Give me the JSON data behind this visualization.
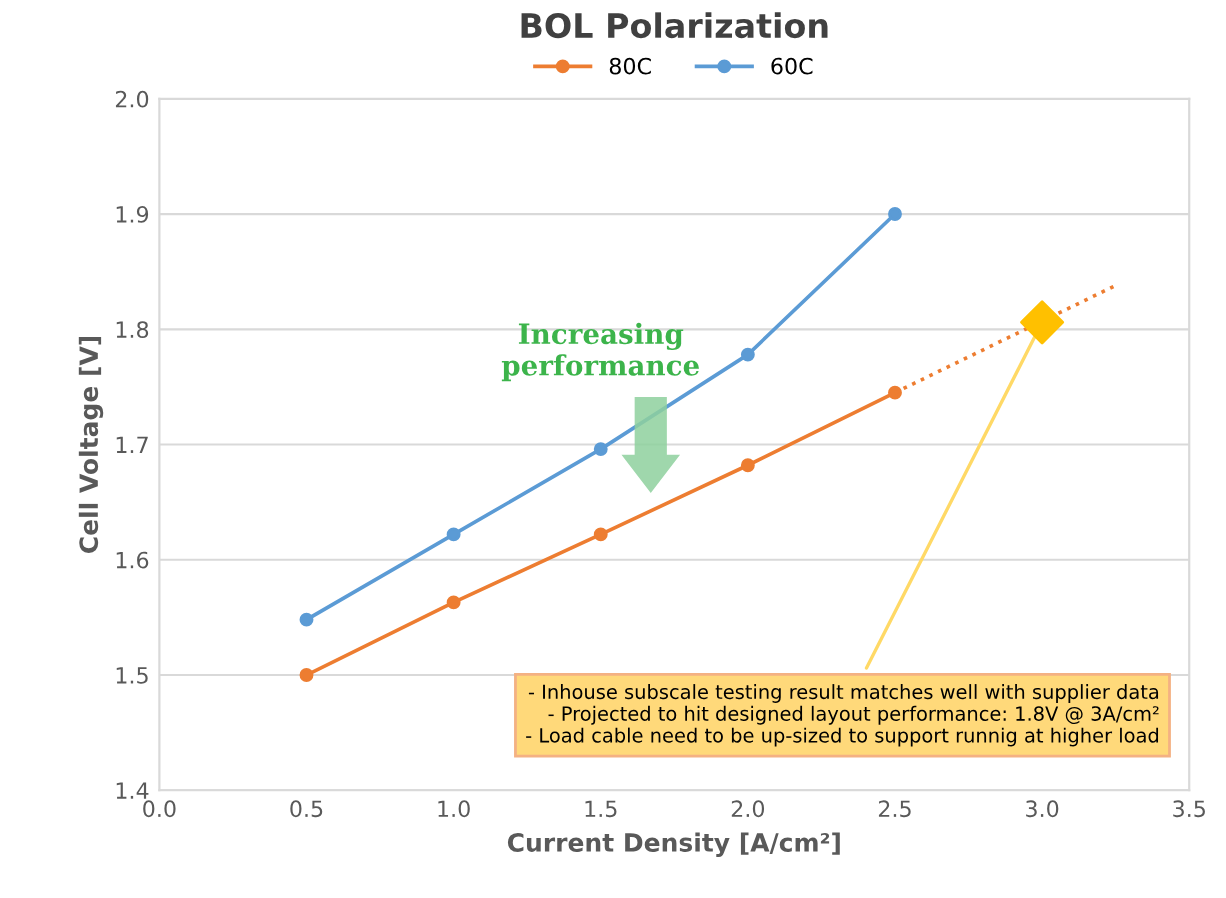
{
  "chart_data": {
    "type": "line",
    "title": "BOL Polarization",
    "xlabel": "Current Density [A/cm²]",
    "ylabel": "Cell Voltage [V]",
    "xlim": [
      0,
      3.5
    ],
    "ylim": [
      1.4,
      2.0
    ],
    "xticks": [
      {
        "value": 0,
        "label": "0.0"
      },
      0.5,
      {
        "value": 1,
        "label": "1.0"
      },
      1.5,
      {
        "value": 2,
        "label": "2.0"
      },
      2.5,
      {
        "value": 3,
        "label": "3.0"
      },
      3.5
    ],
    "yticks": [
      1.4,
      1.5,
      1.6,
      1.7,
      1.8,
      1.9,
      {
        "value": 2.0,
        "label": "2.0"
      }
    ],
    "grid": "y",
    "legend": "top",
    "marker": "circle",
    "line_style": "solid",
    "series": [
      {
        "name": "80C",
        "color": "#ed7d31",
        "x": [
          0.5,
          1.0,
          1.5,
          2.0,
          2.5
        ],
        "values": [
          1.5,
          1.563,
          1.622,
          1.682,
          1.745
        ]
      },
      {
        "name": "60C",
        "color": "#5b9bd5",
        "x": [
          0.5,
          1.0,
          1.5,
          2.0,
          2.5
        ],
        "values": [
          1.548,
          1.622,
          1.696,
          1.778,
          1.9
        ]
      },
      {
        "color": "#ed7d31",
        "x": [
          2.5,
          3.25
        ],
        "values": [
          1.745,
          1.838
        ],
        "marker": "none",
        "line_style": "dotted"
      },
      {
        "type": "scatter",
        "color": "#ffc000",
        "x": [
          3.0
        ],
        "values": [
          1.806
        ],
        "marker": "diamond"
      }
    ],
    "annotations": [
      "Increasing\nperformance",
      {
        "text": "- Inhouse subscale testing result matches well with supplier data\n- Projected to hit designed layout performance: 1.8V @ 3A/cm²\n- Load cable need to be up-sized to support runnig at higher load",
        "x": 3.0,
        "y": 1.806
      }
    ]
  }
}
